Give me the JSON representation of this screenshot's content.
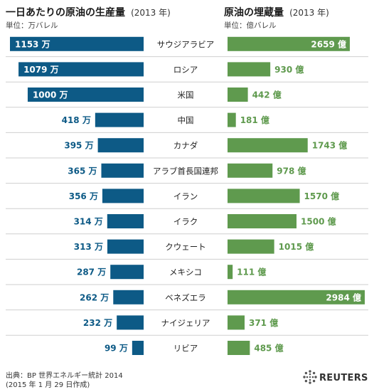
{
  "left_title": "一日あたりの原油の生産量",
  "left_title_year": "(2013 年)",
  "left_unit": "単位：万バレル",
  "right_title": "原油の埋蔵量",
  "right_title_year": "(2013 年)",
  "right_unit": "単位：億バレル",
  "footer": {
    "source": "出典：BP 世界エネルギー統計 2014",
    "date": "(2015 年 1 月 29 日作成)",
    "logo_text": "REUTERS"
  },
  "colors": {
    "production": "#0d5a86",
    "reserves": "#5f9a4e",
    "row_separator": "#cfcfcf"
  },
  "chart_data": {
    "type": "bar",
    "categories": [
      "サウジアラビア",
      "ロシア",
      "米国",
      "中国",
      "カナダ",
      "アラブ首長国連邦",
      "イラン",
      "イラク",
      "クウェート",
      "メキシコ",
      "ベネズエラ",
      "ナイジェリア",
      "リビア"
    ],
    "series": [
      {
        "values": [
          1153,
          1079,
          1000,
          418,
          395,
          365,
          356,
          314,
          313,
          287,
          262,
          232,
          99
        ],
        "labels": [
          "1153 万",
          "1079 万",
          "1000 万",
          "418 万",
          "395 万",
          "365 万",
          "356 万",
          "314 万",
          "313 万",
          "287 万",
          "262 万",
          "232 万",
          "99 万"
        ]
      },
      {
        "values": [
          2659,
          930,
          442,
          181,
          1743,
          978,
          1570,
          1500,
          1015,
          111,
          2984,
          371,
          485
        ],
        "labels": [
          "2659 億",
          "930 億",
          "442 億",
          "181 億",
          "1743 億",
          "978 億",
          "1570 億",
          "1500 億",
          "1015 億",
          "111 億",
          "2984 億",
          "371 億",
          "485 億"
        ]
      }
    ]
  }
}
